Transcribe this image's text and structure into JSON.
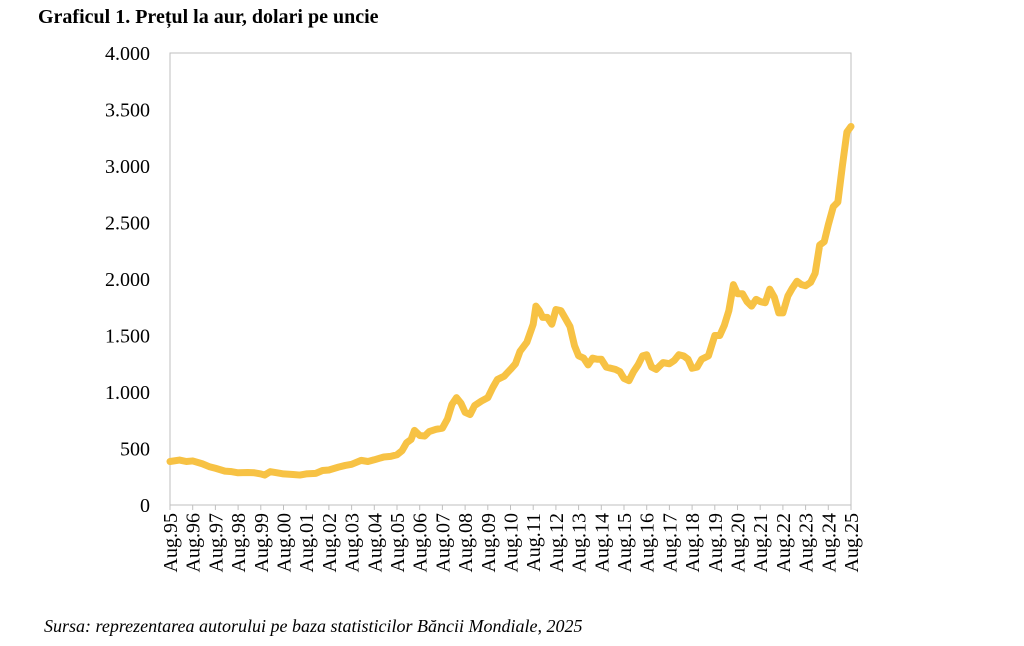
{
  "chart_data": {
    "type": "line",
    "title": "Graficul 1. Prețul la aur, dolari pe uncie",
    "source": "Sursa: reprezentarea autorului pe baza statisticilor Băncii Mondiale, 2025",
    "xlabel": "",
    "ylabel": "",
    "ylim": [
      0,
      4000
    ],
    "yticks": [
      0,
      500,
      1000,
      1500,
      2000,
      2500,
      3000,
      3500,
      4000
    ],
    "ytick_labels": [
      "0",
      "500",
      "1.000",
      "1.500",
      "2.000",
      "2.500",
      "3.000",
      "3.500",
      "4.000"
    ],
    "xtick_labels": [
      "Aug.95",
      "Aug.96",
      "Aug.97",
      "Aug.98",
      "Aug.99",
      "Aug.00",
      "Aug.01",
      "Aug.02",
      "Aug.03",
      "Aug.04",
      "Aug.05",
      "Aug.06",
      "Aug.07",
      "Aug.08",
      "Aug.09",
      "Aug.10",
      "Aug.11",
      "Aug.12",
      "Aug.13",
      "Aug.14",
      "Aug.15",
      "Aug.16",
      "Aug.17",
      "Aug.18",
      "Aug.19",
      "Aug.20",
      "Aug.21",
      "Aug.22",
      "Aug.23",
      "Aug.24",
      "Aug.25"
    ],
    "grid": false,
    "line_color": "#F7C244",
    "series": [
      {
        "x": [
          1995.58,
          1996.0,
          1996.3,
          1996.58,
          1997.0,
          1997.3,
          1997.58,
          1998.0,
          1998.3,
          1998.58,
          1999.0,
          1999.3,
          1999.58,
          1999.75,
          2000.0,
          2000.3,
          2000.58,
          2001.0,
          2001.3,
          2001.58,
          2002.0,
          2002.3,
          2002.58,
          2003.0,
          2003.3,
          2003.58,
          2004.0,
          2004.3,
          2004.58,
          2005.0,
          2005.3,
          2005.58,
          2005.8,
          2006.0,
          2006.2,
          2006.35,
          2006.58,
          2006.8,
          2007.0,
          2007.3,
          2007.58,
          2007.8,
          2008.0,
          2008.2,
          2008.4,
          2008.58,
          2008.8,
          2009.0,
          2009.3,
          2009.58,
          2009.8,
          2010.0,
          2010.3,
          2010.58,
          2010.8,
          2011.0,
          2011.3,
          2011.58,
          2011.7,
          2011.85,
          2012.0,
          2012.2,
          2012.4,
          2012.58,
          2012.8,
          2013.0,
          2013.2,
          2013.4,
          2013.58,
          2013.8,
          2014.0,
          2014.2,
          2014.4,
          2014.58,
          2014.8,
          2015.0,
          2015.2,
          2015.4,
          2015.58,
          2015.8,
          2016.0,
          2016.2,
          2016.4,
          2016.58,
          2016.8,
          2017.0,
          2017.3,
          2017.58,
          2017.8,
          2018.0,
          2018.2,
          2018.4,
          2018.58,
          2018.8,
          2019.0,
          2019.3,
          2019.58,
          2019.8,
          2020.0,
          2020.2,
          2020.4,
          2020.58,
          2020.8,
          2021.0,
          2021.2,
          2021.4,
          2021.58,
          2021.8,
          2022.0,
          2022.2,
          2022.4,
          2022.58,
          2022.8,
          2023.0,
          2023.2,
          2023.4,
          2023.58,
          2023.8,
          2024.0,
          2024.2,
          2024.4,
          2024.58,
          2024.8,
          2025.0,
          2025.2,
          2025.4,
          2025.58
        ],
        "values": [
          385,
          398,
          385,
          390,
          365,
          340,
          325,
          300,
          295,
          285,
          288,
          285,
          275,
          265,
          295,
          285,
          275,
          270,
          265,
          275,
          280,
          305,
          310,
          335,
          350,
          360,
          395,
          385,
          400,
          425,
          430,
          445,
          480,
          550,
          580,
          660,
          615,
          610,
          650,
          670,
          680,
          760,
          890,
          950,
          900,
          820,
          800,
          880,
          920,
          950,
          1040,
          1110,
          1140,
          1200,
          1250,
          1360,
          1440,
          1600,
          1760,
          1720,
          1660,
          1660,
          1600,
          1730,
          1720,
          1650,
          1580,
          1410,
          1320,
          1300,
          1240,
          1300,
          1290,
          1290,
          1220,
          1210,
          1200,
          1180,
          1120,
          1100,
          1180,
          1240,
          1320,
          1330,
          1220,
          1200,
          1260,
          1250,
          1280,
          1330,
          1320,
          1290,
          1210,
          1220,
          1290,
          1320,
          1500,
          1500,
          1590,
          1720,
          1950,
          1870,
          1870,
          1800,
          1760,
          1820,
          1800,
          1790,
          1910,
          1840,
          1700,
          1700,
          1850,
          1920,
          1980,
          1950,
          1940,
          1970,
          2050,
          2300,
          2330,
          2480,
          2640,
          2680,
          3000,
          3300,
          3350
        ]
      }
    ]
  }
}
